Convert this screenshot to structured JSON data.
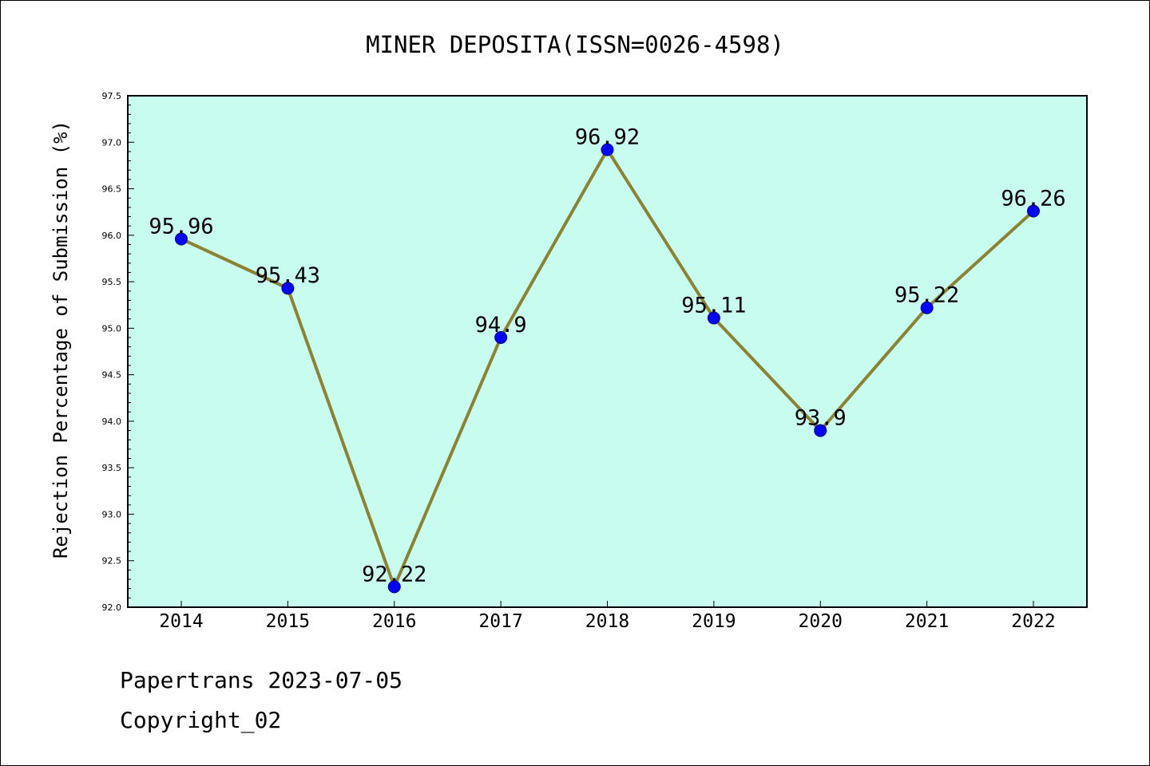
{
  "chart_data": {
    "type": "line",
    "title": "MINER DEPOSITA(ISSN=0026-4598)",
    "xlabel": "",
    "ylabel": "Rejection Percentage of Submission (%)",
    "categories": [
      "2014",
      "2015",
      "2016",
      "2017",
      "2018",
      "2019",
      "2020",
      "2021",
      "2022"
    ],
    "values": [
      95.96,
      95.43,
      92.22,
      94.9,
      96.92,
      95.11,
      93.9,
      95.22,
      96.26
    ],
    "data_labels": [
      "95.96",
      "95.43",
      "92.22",
      "94.9",
      "96.92",
      "95.11",
      "93.9",
      "95.22",
      "96.26"
    ],
    "ylim": [
      92.0,
      97.5
    ],
    "yticks": [
      "92.0",
      "92.5",
      "93.0",
      "93.5",
      "94.0",
      "94.5",
      "95.0",
      "95.5",
      "96.0",
      "96.5",
      "97.0",
      "97.5"
    ],
    "grid": false,
    "legend": "none",
    "colors": {
      "plot_background": "#c7fcee",
      "line": "#8b8233",
      "marker": "#0000ff"
    }
  },
  "footer": {
    "line1": "Papertrans 2023-07-05",
    "line2": "Copyright_02"
  }
}
